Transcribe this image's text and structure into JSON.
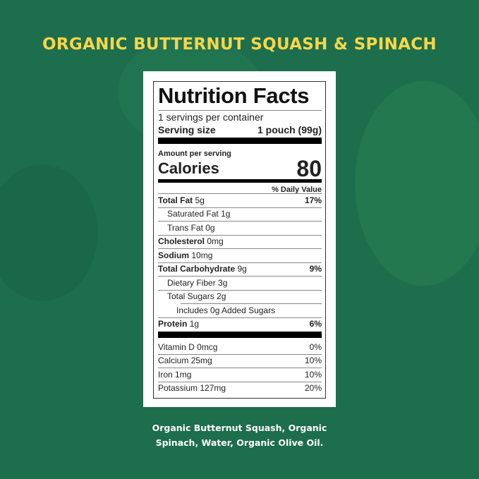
{
  "title": "ORGANIC BUTTERNUT SQUASH & SPINACH",
  "label": {
    "heading": "Nutrition Facts",
    "servings": "1 servings per container",
    "serving_size_label": "Serving size",
    "serving_size_value": "1 pouch (99g)",
    "amount_per_serving": "Amount per serving",
    "calories_label": "Calories",
    "calories_value": "80",
    "daily_value_header": "% Daily Value",
    "nutrients": [
      {
        "name": "Total Fat",
        "amount": "5g",
        "dv": "17%",
        "bold": true,
        "indent": 0
      },
      {
        "name": "Saturated Fat",
        "amount": "1g",
        "dv": "",
        "bold": false,
        "indent": 1
      },
      {
        "name": "Trans Fat",
        "amount": "0g",
        "dv": "",
        "bold": false,
        "indent": 1
      },
      {
        "name": "Cholesterol",
        "amount": "0mg",
        "dv": "",
        "bold": true,
        "indent": 0
      },
      {
        "name": "Sodium",
        "amount": "10mg",
        "dv": "",
        "bold": true,
        "indent": 0
      },
      {
        "name": "Total Carbohydrate",
        "amount": "9g",
        "dv": "9%",
        "bold": true,
        "indent": 0
      },
      {
        "name": "Dietary Fiber",
        "amount": "3g",
        "dv": "",
        "bold": false,
        "indent": 1
      },
      {
        "name": "Total Sugars",
        "amount": "2g",
        "dv": "",
        "bold": false,
        "indent": 1
      },
      {
        "name": "Includes 0g Added Sugars",
        "amount": "",
        "dv": "",
        "bold": false,
        "indent": 2
      },
      {
        "name": "Protein",
        "amount": "1g",
        "dv": "6%",
        "bold": true,
        "indent": 0
      }
    ],
    "vitamins": [
      {
        "name": "Vitamin D",
        "amount": "0mcg",
        "dv": "0%"
      },
      {
        "name": "Calcium",
        "amount": "25mg",
        "dv": "10%"
      },
      {
        "name": "Iron",
        "amount": "1mg",
        "dv": "10%"
      },
      {
        "name": "Potassium",
        "amount": "127mg",
        "dv": "20%"
      }
    ]
  },
  "ingredients": [
    "Organic Butternut Squash, Organic",
    "Spinach, Water, Organic Olive Oil."
  ],
  "colors": {
    "background": "#1d6e4c",
    "title": "#f8d64a"
  }
}
